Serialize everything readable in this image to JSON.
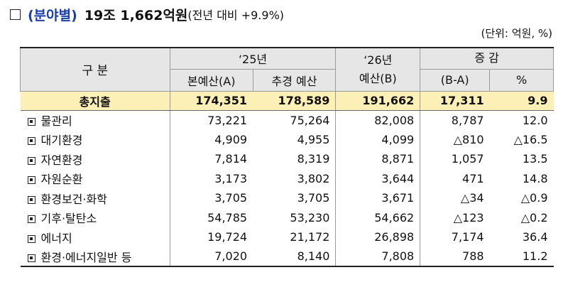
{
  "title": {
    "category": "(분야별)",
    "amount": "19조 1,662억원",
    "comparison": "(전년 대비 +9.9%)"
  },
  "unit_note": "(단위: 억원, %)",
  "headers": {
    "division": "구 분",
    "year25": "‘25년",
    "year26": "‘26년",
    "year26_sub": "예산(B)",
    "change": "증 감",
    "change_sub": "(B-A)",
    "main_budget": "본예산(A)",
    "supplementary": "추경 예산",
    "percent": "%"
  },
  "total": {
    "label": "총지출",
    "main": "174,351",
    "supp": "178,589",
    "budget26": "191,662",
    "diff": "17,311",
    "pct": "9.9"
  },
  "rows": [
    {
      "name": "물관리",
      "main": "73,221",
      "supp": "75,264",
      "budget26": "82,008",
      "diff": "8,787",
      "pct": "12.0"
    },
    {
      "name": "대기환경",
      "main": "4,909",
      "supp": "4,955",
      "budget26": "4,099",
      "diff": "△810",
      "pct": "△16.5"
    },
    {
      "name": "자연환경",
      "main": "7,814",
      "supp": "8,319",
      "budget26": "8,871",
      "diff": "1,057",
      "pct": "13.5"
    },
    {
      "name": "자원순환",
      "main": "3,173",
      "supp": "3,802",
      "budget26": "3,644",
      "diff": "471",
      "pct": "14.8"
    },
    {
      "name": "환경보건·화학",
      "main": "3,705",
      "supp": "3,705",
      "budget26": "3,671",
      "diff": "△34",
      "pct": "△0.9"
    },
    {
      "name": "기후·탈탄소",
      "main": "54,785",
      "supp": "53,230",
      "budget26": "54,662",
      "diff": "△123",
      "pct": "△0.2"
    },
    {
      "name": "에너지",
      "main": "19,724",
      "supp": "21,172",
      "budget26": "26,898",
      "diff": "7,174",
      "pct": "36.4"
    },
    {
      "name": "환경·에너지일반 등",
      "main": "7,020",
      "supp": "8,140",
      "budget26": "7,808",
      "diff": "788",
      "pct": "11.2"
    }
  ]
}
